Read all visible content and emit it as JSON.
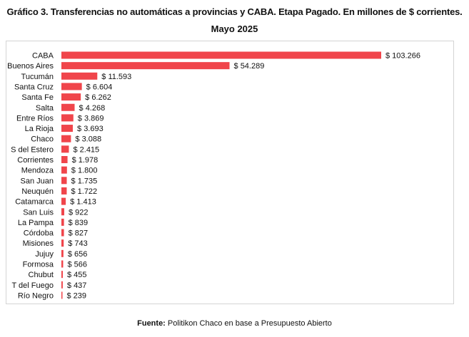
{
  "chart_data": {
    "type": "bar",
    "orientation": "horizontal",
    "title": "Gráfico 3. Transferencias no automáticas a provincias y CABA. Etapa Pagado. En millones de $ corrientes.",
    "subtitle": "Mayo 2025",
    "categories": [
      "CABA",
      "Buenos Aires",
      "Tucumán",
      "Santa Cruz",
      "Santa Fe",
      "Salta",
      "Entre Ríos",
      "La Rioja",
      "Chaco",
      "S del Estero",
      "Corrientes",
      "Mendoza",
      "San Juan",
      "Neuquén",
      "Catamarca",
      "San Luis",
      "La Pampa",
      "Córdoba",
      "Misiones",
      "Jujuy",
      "Formosa",
      "Chubut",
      "T del Fuego",
      "Río Negro"
    ],
    "values": [
      103266,
      54289,
      11593,
      6604,
      6262,
      4268,
      3869,
      3693,
      3088,
      2415,
      1978,
      1800,
      1735,
      1722,
      1413,
      922,
      839,
      827,
      743,
      656,
      566,
      455,
      437,
      239
    ],
    "value_labels": [
      "$ 103.266",
      "$ 54.289",
      "$ 11.593",
      "$ 6.604",
      "$ 6.262",
      "$ 4.268",
      "$ 3.869",
      "$ 3.693",
      "$ 3.088",
      "$ 2.415",
      "$ 1.978",
      "$ 1.800",
      "$ 1.735",
      "$ 1.722",
      "$ 1.413",
      "$ 922",
      "$ 839",
      "$ 827",
      "$ 743",
      "$ 656",
      "$ 566",
      "$ 455",
      "$ 437",
      "$ 239"
    ],
    "bar_color": "#f0454b",
    "grid": false,
    "legend": "none"
  },
  "source": {
    "label": "Fuente:",
    "text": "Politikon Chaco en base a Presupuesto Abierto"
  }
}
